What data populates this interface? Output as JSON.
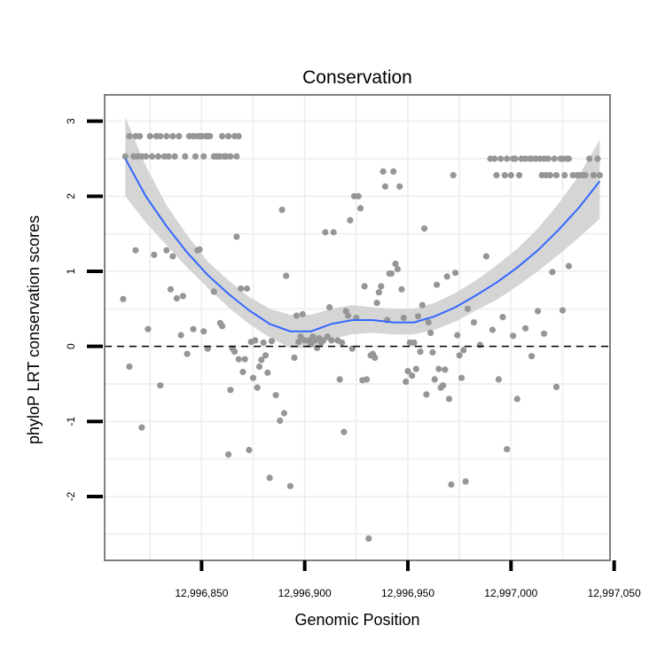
{
  "chart_data": {
    "type": "scatter",
    "title": "Conservation",
    "xlabel": "Genomic Position",
    "ylabel": "phyloP LRT conservation scores",
    "xlim": [
      12996803,
      12997048
    ],
    "ylim": [
      -2.85,
      3.35
    ],
    "x_ticks": [
      12996850,
      12996900,
      12996950,
      12997000,
      12997050
    ],
    "x_tick_labels": [
      "12,996,850",
      "12,996,900",
      "12,996,950",
      "12,997,000",
      "12,997,050"
    ],
    "y_ticks": [
      -2,
      -1,
      0,
      1,
      2,
      3
    ],
    "y_tick_labels": [
      "-2",
      "-1",
      "0",
      "1",
      "2",
      "3"
    ],
    "reference_line": {
      "y": 0,
      "style": "dashed"
    },
    "colors": {
      "points": "#969696",
      "smooth": "#3366FF",
      "ribbon": "#D3D3D3",
      "grid": "#F0F0F0",
      "border": "#808080"
    },
    "series": [
      {
        "name": "scores",
        "points": [
          [
            12996813,
            2.53
          ],
          [
            12996815,
            2.8
          ],
          [
            12996817,
            2.53
          ],
          [
            12996818,
            2.8
          ],
          [
            12996819,
            2.53
          ],
          [
            12996820,
            2.8
          ],
          [
            12996821,
            2.53
          ],
          [
            12996823,
            2.53
          ],
          [
            12996825,
            2.8
          ],
          [
            12996826,
            2.53
          ],
          [
            12996828,
            2.8
          ],
          [
            12996829,
            2.53
          ],
          [
            12996830,
            2.8
          ],
          [
            12996832,
            2.53
          ],
          [
            12996833,
            2.8
          ],
          [
            12996834,
            2.53
          ],
          [
            12996836,
            2.8
          ],
          [
            12996837,
            2.53
          ],
          [
            12996839,
            2.8
          ],
          [
            12996842,
            2.53
          ],
          [
            12996844,
            2.8
          ],
          [
            12996846,
            2.8
          ],
          [
            12996847,
            2.53
          ],
          [
            12996848,
            2.8
          ],
          [
            12996849,
            2.8
          ],
          [
            12996850,
            2.8
          ],
          [
            12996851,
            2.53
          ],
          [
            12996852,
            2.8
          ],
          [
            12996853,
            2.8
          ],
          [
            12996854,
            2.8
          ],
          [
            12996856,
            2.53
          ],
          [
            12996857,
            2.53
          ],
          [
            12996858,
            2.53
          ],
          [
            12996859,
            2.53
          ],
          [
            12996860,
            2.8
          ],
          [
            12996861,
            2.53
          ],
          [
            12996862,
            2.53
          ],
          [
            12996863,
            2.8
          ],
          [
            12996864,
            2.53
          ],
          [
            12996866,
            2.8
          ],
          [
            12996867,
            2.53
          ],
          [
            12996868,
            2.8
          ],
          [
            12996990,
            2.5
          ],
          [
            12996992,
            2.5
          ],
          [
            12996993,
            2.28
          ],
          [
            12996995,
            2.5
          ],
          [
            12996997,
            2.28
          ],
          [
            12996998,
            2.5
          ],
          [
            12997000,
            2.28
          ],
          [
            12997001,
            2.5
          ],
          [
            12997002,
            2.5
          ],
          [
            12997004,
            2.28
          ],
          [
            12997005,
            2.5
          ],
          [
            12997007,
            2.5
          ],
          [
            12997009,
            2.5
          ],
          [
            12997010,
            2.5
          ],
          [
            12997012,
            2.5
          ],
          [
            12997014,
            2.5
          ],
          [
            12997015,
            2.28
          ],
          [
            12997016,
            2.5
          ],
          [
            12997017,
            2.28
          ],
          [
            12997018,
            2.5
          ],
          [
            12997019,
            2.28
          ],
          [
            12997021,
            2.5
          ],
          [
            12997022,
            2.28
          ],
          [
            12997024,
            2.5
          ],
          [
            12997025,
            2.5
          ],
          [
            12997026,
            2.28
          ],
          [
            12997027,
            2.5
          ],
          [
            12997028,
            2.5
          ],
          [
            12997030,
            2.28
          ],
          [
            12997032,
            2.28
          ],
          [
            12997033,
            2.28
          ],
          [
            12997035,
            2.28
          ],
          [
            12997036,
            2.28
          ],
          [
            12997038,
            2.5
          ],
          [
            12997040,
            2.28
          ],
          [
            12997042,
            2.5
          ],
          [
            12997043,
            2.28
          ],
          [
            12996812,
            0.63
          ],
          [
            12996815,
            -0.27
          ],
          [
            12996818,
            1.28
          ],
          [
            12996821,
            -1.08
          ],
          [
            12996824,
            0.23
          ],
          [
            12996827,
            1.22
          ],
          [
            12996830,
            -0.52
          ],
          [
            12996833,
            1.28
          ],
          [
            12996835,
            0.76
          ],
          [
            12996836,
            1.2
          ],
          [
            12996838,
            0.64
          ],
          [
            12996840,
            0.15
          ],
          [
            12996841,
            0.67
          ],
          [
            12996843,
            -0.1
          ],
          [
            12996846,
            0.23
          ],
          [
            12996848,
            1.28
          ],
          [
            12996849,
            1.29
          ],
          [
            12996851,
            0.2
          ],
          [
            12996853,
            -0.03
          ],
          [
            12996856,
            0.73
          ],
          [
            12996859,
            0.31
          ],
          [
            12996860,
            0.27
          ],
          [
            12996863,
            -1.44
          ],
          [
            12996864,
            -0.58
          ],
          [
            12996865,
            -0.03
          ],
          [
            12996866,
            -0.07
          ],
          [
            12996867,
            1.46
          ],
          [
            12996868,
            -0.17
          ],
          [
            12996869,
            0.77
          ],
          [
            12996870,
            -0.34
          ],
          [
            12996871,
            -0.17
          ],
          [
            12996872,
            0.77
          ],
          [
            12996873,
            -1.38
          ],
          [
            12996874,
            0.06
          ],
          [
            12996875,
            -0.42
          ],
          [
            12996876,
            0.08
          ],
          [
            12996877,
            -0.55
          ],
          [
            12996878,
            -0.27
          ],
          [
            12996879,
            -0.18
          ],
          [
            12996880,
            0.05
          ],
          [
            12996881,
            -0.12
          ],
          [
            12996882,
            -0.35
          ],
          [
            12996883,
            -1.75
          ],
          [
            12996884,
            0.07
          ],
          [
            12996886,
            -0.65
          ],
          [
            12996888,
            -0.99
          ],
          [
            12996889,
            1.82
          ],
          [
            12996890,
            -0.89
          ],
          [
            12996891,
            0.94
          ],
          [
            12996893,
            -1.86
          ],
          [
            12996895,
            -0.15
          ],
          [
            12996896,
            0.41
          ],
          [
            12996897,
            0.06
          ],
          [
            12996898,
            0.13
          ],
          [
            12996899,
            0.43
          ],
          [
            12996900,
            0.08
          ],
          [
            12996902,
            0.08
          ],
          [
            12996903,
            0.03
          ],
          [
            12996904,
            0.13
          ],
          [
            12996905,
            0.08
          ],
          [
            12996906,
            -0.02
          ],
          [
            12996907,
            0.11
          ],
          [
            12996908,
            0.05
          ],
          [
            12996909,
            0.08
          ],
          [
            12996910,
            1.52
          ],
          [
            12996911,
            0.13
          ],
          [
            12996912,
            0.52
          ],
          [
            12996913,
            0.08
          ],
          [
            12996914,
            1.52
          ],
          [
            12996916,
            0.08
          ],
          [
            12996917,
            -0.44
          ],
          [
            12996918,
            0.05
          ],
          [
            12996919,
            -1.14
          ],
          [
            12996920,
            0.47
          ],
          [
            12996921,
            0.41
          ],
          [
            12996922,
            1.68
          ],
          [
            12996923,
            -0.03
          ],
          [
            12996924,
            2.0
          ],
          [
            12996925,
            0.38
          ],
          [
            12996926,
            2.0
          ],
          [
            12996927,
            1.84
          ],
          [
            12996928,
            -0.45
          ],
          [
            12996929,
            0.8
          ],
          [
            12996930,
            -0.44
          ],
          [
            12996931,
            -2.56
          ],
          [
            12996932,
            -0.12
          ],
          [
            12996933,
            -0.1
          ],
          [
            12996934,
            -0.15
          ],
          [
            12996935,
            0.58
          ],
          [
            12996936,
            0.72
          ],
          [
            12996937,
            0.8
          ],
          [
            12996938,
            2.33
          ],
          [
            12996939,
            2.13
          ],
          [
            12996940,
            0.35
          ],
          [
            12996941,
            0.97
          ],
          [
            12996942,
            0.97
          ],
          [
            12996943,
            2.33
          ],
          [
            12996944,
            1.1
          ],
          [
            12996945,
            1.03
          ],
          [
            12996946,
            2.13
          ],
          [
            12996947,
            0.76
          ],
          [
            12996948,
            0.38
          ],
          [
            12996949,
            -0.47
          ],
          [
            12996950,
            -0.33
          ],
          [
            12996951,
            0.05
          ],
          [
            12996952,
            -0.39
          ],
          [
            12996953,
            0.05
          ],
          [
            12996954,
            -0.3
          ],
          [
            12996955,
            0.4
          ],
          [
            12996956,
            -0.07
          ],
          [
            12996957,
            0.55
          ],
          [
            12996958,
            1.57
          ],
          [
            12996959,
            -0.64
          ],
          [
            12996960,
            0.32
          ],
          [
            12996961,
            0.18
          ],
          [
            12996962,
            -0.08
          ],
          [
            12996963,
            -0.44
          ],
          [
            12996964,
            0.82
          ],
          [
            12996965,
            -0.3
          ],
          [
            12996966,
            -0.55
          ],
          [
            12996967,
            -0.52
          ],
          [
            12996968,
            -0.31
          ],
          [
            12996969,
            0.93
          ],
          [
            12996970,
            -0.7
          ],
          [
            12996971,
            -1.84
          ],
          [
            12996972,
            2.28
          ],
          [
            12996973,
            0.98
          ],
          [
            12996974,
            0.15
          ],
          [
            12996975,
            -0.12
          ],
          [
            12996976,
            -0.42
          ],
          [
            12996977,
            -0.05
          ],
          [
            12996978,
            -1.8
          ],
          [
            12996979,
            0.5
          ],
          [
            12996982,
            0.32
          ],
          [
            12996985,
            0.02
          ],
          [
            12996988,
            1.2
          ],
          [
            12996991,
            0.22
          ],
          [
            12996994,
            -0.44
          ],
          [
            12996996,
            0.39
          ],
          [
            12996998,
            -1.37
          ],
          [
            12997001,
            0.14
          ],
          [
            12997003,
            -0.7
          ],
          [
            12997007,
            0.24
          ],
          [
            12997010,
            -0.13
          ],
          [
            12997013,
            0.47
          ],
          [
            12997016,
            0.17
          ],
          [
            12997020,
            0.99
          ],
          [
            12997022,
            -0.54
          ],
          [
            12997025,
            0.48
          ],
          [
            12997028,
            1.07
          ]
        ]
      }
    ],
    "smooth": {
      "x": [
        12996813,
        12996823,
        12996833,
        12996843,
        12996853,
        12996863,
        12996873,
        12996883,
        12996893,
        12996903,
        12996913,
        12996923,
        12996933,
        12996943,
        12996953,
        12996963,
        12996973,
        12996983,
        12996993,
        12997003,
        12997013,
        12997023,
        12997033,
        12997043
      ],
      "y": [
        2.5,
        2.0,
        1.6,
        1.25,
        0.95,
        0.7,
        0.48,
        0.3,
        0.2,
        0.2,
        0.3,
        0.35,
        0.35,
        0.32,
        0.32,
        0.4,
        0.52,
        0.68,
        0.85,
        1.05,
        1.28,
        1.55,
        1.85,
        2.2
      ],
      "lower": [
        2.0,
        1.65,
        1.35,
        1.05,
        0.78,
        0.52,
        0.3,
        0.12,
        -0.02,
        -0.02,
        0.1,
        0.16,
        0.18,
        0.16,
        0.16,
        0.22,
        0.33,
        0.48,
        0.62,
        0.8,
        1.0,
        1.22,
        1.45,
        1.7
      ],
      "upper": [
        3.05,
        2.4,
        1.88,
        1.48,
        1.13,
        0.88,
        0.66,
        0.5,
        0.42,
        0.42,
        0.5,
        0.55,
        0.52,
        0.5,
        0.5,
        0.58,
        0.71,
        0.88,
        1.08,
        1.3,
        1.57,
        1.9,
        2.28,
        2.75
      ]
    }
  }
}
